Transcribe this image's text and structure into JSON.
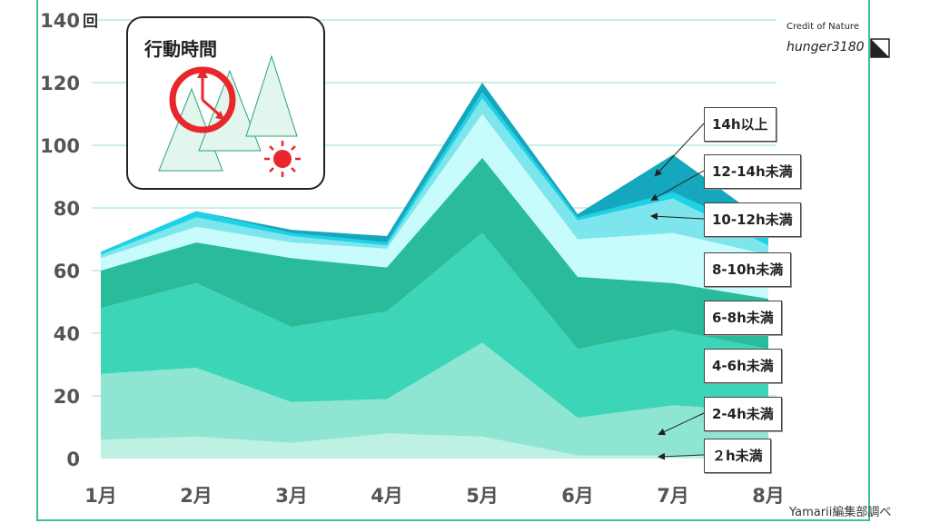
{
  "chart_data": {
    "type": "area",
    "stacked": true,
    "title": "行動時間",
    "y_unit": "回",
    "categories": [
      "1月",
      "2月",
      "3月",
      "4月",
      "5月",
      "6月",
      "7月",
      "8月"
    ],
    "ylim": [
      0,
      140
    ],
    "yticks": [
      0,
      20,
      40,
      60,
      80,
      100,
      120,
      140
    ],
    "grid": true,
    "series": [
      {
        "name": "２h未満",
        "color": "#bff0e4",
        "values": [
          6,
          7,
          5,
          8,
          7,
          1,
          1,
          1
        ]
      },
      {
        "name": "2-4h未満",
        "color": "#8ee6d2",
        "values": [
          21,
          22,
          13,
          11,
          30,
          12,
          16,
          14
        ]
      },
      {
        "name": "4-6h未満",
        "color": "#3dd5b8",
        "values": [
          21,
          27,
          24,
          28,
          35,
          22,
          24,
          20
        ]
      },
      {
        "name": "6-8h未満",
        "color": "#2abb9b",
        "values": [
          12,
          13,
          22,
          14,
          24,
          23,
          15,
          16
        ]
      },
      {
        "name": "8-10h未満",
        "color": "#c8fbfb",
        "values": [
          4,
          5,
          5,
          6,
          14,
          12,
          16,
          14
        ]
      },
      {
        "name": "10-12h未満",
        "color": "#7ce6ec",
        "values": [
          1,
          3,
          2,
          1,
          5,
          6,
          11,
          3
        ]
      },
      {
        "name": "12-14h未満",
        "color": "#1dd2e6",
        "values": [
          1,
          2,
          1,
          1,
          2,
          1,
          2,
          3
        ]
      },
      {
        "name": "14h以上",
        "color": "#14a7bd",
        "values": [
          0,
          0,
          1,
          2,
          3,
          1,
          12,
          4
        ]
      }
    ]
  },
  "credit": {
    "label": "Credit of Nature",
    "name": "hunger3180"
  },
  "source": "Yamarii編集部調べ"
}
